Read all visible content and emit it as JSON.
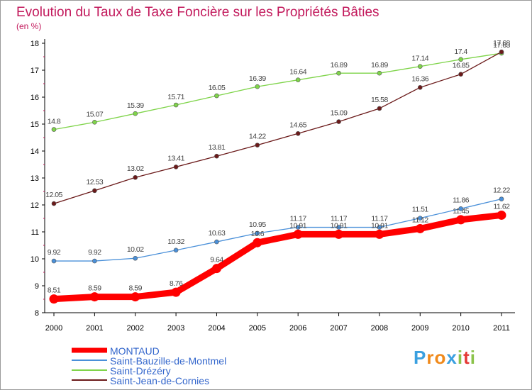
{
  "chart_data": {
    "type": "line",
    "title": "Evolution du Taux de Taxe Foncière sur les Propriétés Bâties",
    "subtitle": "(en %)",
    "x": [
      "2000",
      "2001",
      "2002",
      "2003",
      "2004",
      "2005",
      "2006",
      "2007",
      "2008",
      "2009",
      "2010",
      "2011"
    ],
    "ylim": [
      8,
      18
    ],
    "yticks": [
      "8",
      "9",
      "10",
      "11",
      "12",
      "13",
      "14",
      "15",
      "16",
      "17",
      "18"
    ],
    "grid": false,
    "legend": "bottom-left",
    "series": [
      {
        "name": "MONTAUD",
        "color": "#ff0000",
        "values": [
          8.51,
          8.59,
          8.59,
          8.76,
          9.64,
          10.6,
          10.91,
          10.91,
          10.91,
          11.12,
          11.45,
          11.62
        ],
        "labels": [
          "8.51",
          "8.59",
          "8.59",
          "8.76",
          "9.64",
          "10.6",
          "10.91",
          "10.91",
          "10.91",
          "11.12",
          "11.45",
          "11.62"
        ]
      },
      {
        "name": "Saint-Bauzille-de-Montmel",
        "color": "#4a90d9",
        "values": [
          9.92,
          9.92,
          10.02,
          10.32,
          10.63,
          10.95,
          11.17,
          11.17,
          11.17,
          11.51,
          11.86,
          12.22
        ],
        "labels": [
          "9.92",
          "9.92",
          "10.02",
          "10.32",
          "10.63",
          "10.95",
          "11.17",
          "11.17",
          "11.17",
          "11.51",
          "11.86",
          "12.22"
        ]
      },
      {
        "name": "Saint-Drézéry",
        "color": "#7fd44a",
        "values": [
          14.8,
          15.07,
          15.39,
          15.71,
          16.05,
          16.39,
          16.64,
          16.89,
          16.89,
          17.14,
          17.4,
          17.63
        ],
        "labels": [
          "14.8",
          "15.07",
          "15.39",
          "15.71",
          "16.05",
          "16.39",
          "16.64",
          "16.89",
          "16.89",
          "17.14",
          "17.4",
          "17.63"
        ]
      },
      {
        "name": "Saint-Jean-de-Cornies",
        "color": "#6b1a1a",
        "values": [
          12.05,
          12.53,
          13.02,
          13.41,
          13.81,
          14.22,
          14.65,
          15.09,
          15.58,
          16.36,
          16.85,
          17.68
        ],
        "labels": [
          "12.05",
          "12.53",
          "13.02",
          "13.41",
          "13.81",
          "14.22",
          "14.65",
          "15.09",
          "15.58",
          "16.36",
          "16.85",
          "17.68"
        ]
      }
    ]
  },
  "colors": {
    "title": "#c2185b",
    "axis": "#000000",
    "legend_text": "#3366cc",
    "tick": "#c2185b"
  },
  "logo": {
    "text": "Proxiti",
    "letter_colors": [
      "#3aa0e0",
      "#f08a1c",
      "#f08a1c",
      "#3aa0e0",
      "#8bc34a",
      "#e53935",
      "#8bc34a"
    ]
  }
}
